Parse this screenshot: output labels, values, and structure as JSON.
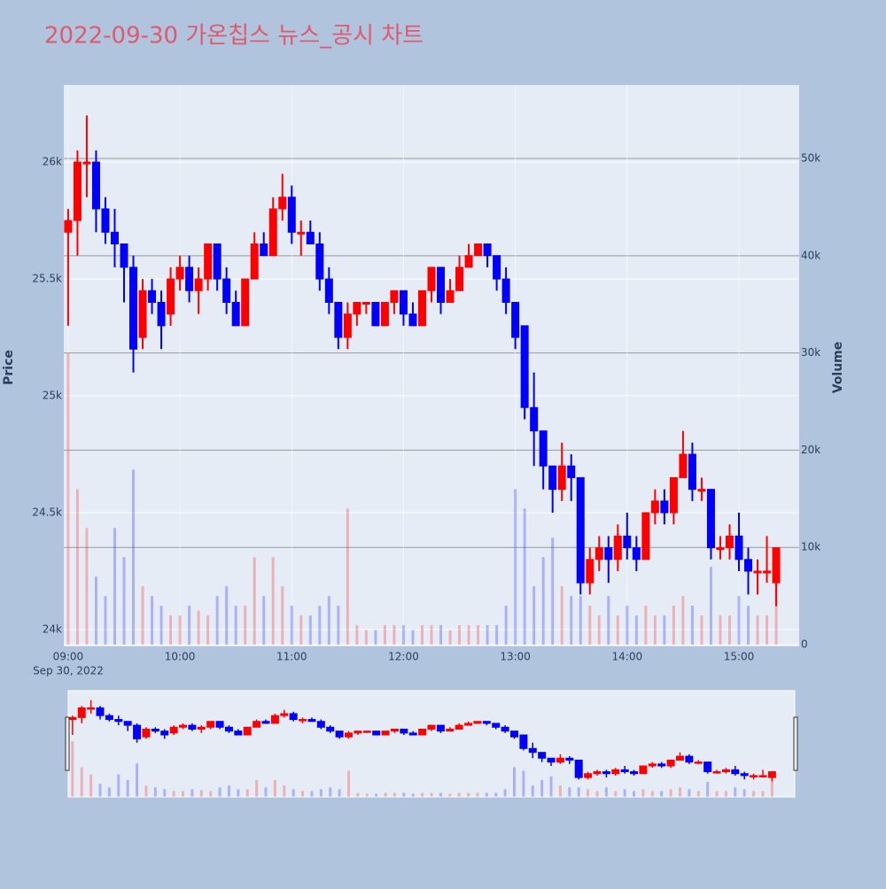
{
  "chart_data": {
    "type": "candlestick",
    "title": "2022-09-30 가온칩스 뉴스_공시 차트",
    "yaxis_title": "Price",
    "y2axis_title": "Volume",
    "x_date_label": "Sep 30, 2022",
    "increasing_color": "#ff0000",
    "decreasing_color": "#0000ff",
    "grid": true,
    "range_slider": true,
    "xlim": [
      "2022-09-30 08:57:40",
      "2022-09-30 15:32:20"
    ],
    "xticks": [
      {
        "value": "2022-09-30 09:00",
        "label": "09:00"
      },
      {
        "value": "2022-09-30 10:00",
        "label": "10:00"
      },
      {
        "value": "2022-09-30 11:00",
        "label": "11:00"
      },
      {
        "value": "2022-09-30 12:00",
        "label": "12:00"
      },
      {
        "value": "2022-09-30 13:00",
        "label": "13:00"
      },
      {
        "value": "2022-09-30 14:00",
        "label": "14:00"
      },
      {
        "value": "2022-09-30 15:00",
        "label": "15:00"
      }
    ],
    "ylim": [
      23928,
      26330
    ],
    "yticks": [
      {
        "value": 24000,
        "label": "24k"
      },
      {
        "value": 24500,
        "label": "24.5k"
      },
      {
        "value": 25000,
        "label": "25k"
      },
      {
        "value": 25500,
        "label": "25.5k"
      },
      {
        "value": 26000,
        "label": "26k"
      }
    ],
    "y2lim": [
      -180,
      57560
    ],
    "y2ticks": [
      0,
      {
        "value": 10000,
        "label": "10k"
      },
      {
        "value": 20000,
        "label": "20k"
      },
      {
        "value": 30000,
        "label": "30k"
      },
      {
        "value": 40000,
        "label": "40k"
      },
      {
        "value": 50000,
        "label": "50k"
      }
    ],
    "x": [
      "2022-09-30 09:00",
      "2022-09-30 09:05",
      "2022-09-30 09:10",
      "2022-09-30 09:15",
      "2022-09-30 09:20",
      "2022-09-30 09:25",
      "2022-09-30 09:30",
      "2022-09-30 09:35",
      "2022-09-30 09:40",
      "2022-09-30 09:45",
      "2022-09-30 09:50",
      "2022-09-30 09:55",
      "2022-09-30 10:00",
      "2022-09-30 10:05",
      "2022-09-30 10:10",
      "2022-09-30 10:15",
      "2022-09-30 10:20",
      "2022-09-30 10:25",
      "2022-09-30 10:30",
      "2022-09-30 10:35",
      "2022-09-30 10:40",
      "2022-09-30 10:45",
      "2022-09-30 10:50",
      "2022-09-30 10:55",
      "2022-09-30 11:00",
      "2022-09-30 11:05",
      "2022-09-30 11:10",
      "2022-09-30 11:15",
      "2022-09-30 11:20",
      "2022-09-30 11:25",
      "2022-09-30 11:30",
      "2022-09-30 11:35",
      "2022-09-30 11:40",
      "2022-09-30 11:45",
      "2022-09-30 11:50",
      "2022-09-30 11:55",
      "2022-09-30 12:00",
      "2022-09-30 12:05",
      "2022-09-30 12:10",
      "2022-09-30 12:15",
      "2022-09-30 12:20",
      "2022-09-30 12:25",
      "2022-09-30 12:30",
      "2022-09-30 12:35",
      "2022-09-30 12:40",
      "2022-09-30 12:45",
      "2022-09-30 12:50",
      "2022-09-30 12:55",
      "2022-09-30 13:00",
      "2022-09-30 13:05",
      "2022-09-30 13:10",
      "2022-09-30 13:15",
      "2022-09-30 13:20",
      "2022-09-30 13:25",
      "2022-09-30 13:30",
      "2022-09-30 13:35",
      "2022-09-30 13:40",
      "2022-09-30 13:45",
      "2022-09-30 13:50",
      "2022-09-30 13:55",
      "2022-09-30 14:00",
      "2022-09-30 14:05",
      "2022-09-30 14:10",
      "2022-09-30 14:15",
      "2022-09-30 14:20",
      "2022-09-30 14:25",
      "2022-09-30 14:30",
      "2022-09-30 14:35",
      "2022-09-30 14:40",
      "2022-09-30 14:45",
      "2022-09-30 14:50",
      "2022-09-30 14:55",
      "2022-09-30 15:00",
      "2022-09-30 15:05",
      "2022-09-30 15:10",
      "2022-09-30 15:15",
      "2022-09-30 15:20"
    ],
    "open": [
      25700,
      25750,
      26000,
      26000,
      25800,
      25700,
      25650,
      25550,
      25250,
      25450,
      25400,
      25350,
      25500,
      25550,
      25450,
      25500,
      25650,
      25500,
      25400,
      25300,
      25500,
      25650,
      25600,
      25800,
      25850,
      25700,
      25700,
      25650,
      25500,
      25400,
      25250,
      25350,
      25400,
      25400,
      25300,
      25400,
      25450,
      25350,
      25300,
      25450,
      25550,
      25400,
      25450,
      25550,
      25600,
      25650,
      25600,
      25500,
      25400,
      25300,
      24950,
      24850,
      24700,
      24600,
      24700,
      24650,
      24200,
      24300,
      24350,
      24300,
      24400,
      24350,
      24300,
      24500,
      24550,
      24500,
      24650,
      24750,
      24600,
      24600,
      24350,
      24350,
      24400,
      24300,
      24250,
      24250,
      24200
    ],
    "high": [
      25800,
      26050,
      26200,
      26050,
      25850,
      25800,
      25650,
      25600,
      25500,
      25500,
      25450,
      25550,
      25600,
      25600,
      25550,
      25650,
      25650,
      25550,
      25450,
      25500,
      25700,
      25700,
      25850,
      25950,
      25900,
      25750,
      25750,
      25700,
      25550,
      25400,
      25400,
      25400,
      25400,
      25400,
      25400,
      25450,
      25450,
      25400,
      25450,
      25550,
      25550,
      25500,
      25600,
      25650,
      25650,
      25650,
      25600,
      25550,
      25400,
      25300,
      25100,
      24850,
      24700,
      24800,
      24750,
      24650,
      24350,
      24400,
      24400,
      24450,
      24500,
      24400,
      24500,
      24600,
      24600,
      24650,
      24850,
      24800,
      24650,
      24600,
      24400,
      24450,
      24500,
      24350,
      24300,
      24400,
      24350
    ],
    "low": [
      25300,
      25600,
      25850,
      25700,
      25650,
      25550,
      25400,
      25100,
      25200,
      25350,
      25200,
      25300,
      25450,
      25400,
      25350,
      25450,
      25450,
      25350,
      25300,
      25300,
      25500,
      25600,
      25600,
      25750,
      25650,
      25600,
      25650,
      25450,
      25350,
      25200,
      25200,
      25300,
      25350,
      25300,
      25300,
      25350,
      25300,
      25300,
      25300,
      25400,
      25350,
      25400,
      25450,
      25550,
      25600,
      25550,
      25450,
      25350,
      25200,
      24900,
      24700,
      24600,
      24500,
      24550,
      24550,
      24150,
      24150,
      24250,
      24200,
      24250,
      24300,
      24250,
      24300,
      24450,
      24450,
      24450,
      24650,
      24550,
      24550,
      24300,
      24300,
      24300,
      24250,
      24150,
      24150,
      24200,
      24100
    ],
    "close": [
      25750,
      26000,
      26000,
      25800,
      25700,
      25650,
      25550,
      25200,
      25450,
      25400,
      25300,
      25500,
      25550,
      25450,
      25500,
      25650,
      25500,
      25400,
      25300,
      25500,
      25650,
      25600,
      25800,
      25850,
      25700,
      25700,
      25650,
      25500,
      25400,
      25250,
      25350,
      25400,
      25400,
      25300,
      25400,
      25450,
      25350,
      25300,
      25450,
      25550,
      25400,
      25450,
      25550,
      25600,
      25650,
      25600,
      25500,
      25400,
      25250,
      24950,
      24850,
      24700,
      24600,
      24700,
      24650,
      24200,
      24300,
      24350,
      24300,
      24400,
      24350,
      24300,
      24500,
      24550,
      24500,
      24650,
      24750,
      24600,
      24600,
      24350,
      24350,
      24400,
      24300,
      24250,
      24250,
      24250,
      24350
    ],
    "volume": [
      30000,
      16000,
      12000,
      7000,
      5000,
      12000,
      9000,
      18000,
      6000,
      5000,
      4000,
      3000,
      3000,
      4000,
      3500,
      3000,
      5000,
      6000,
      4000,
      4000,
      9000,
      5000,
      9000,
      6000,
      4000,
      3000,
      3000,
      4000,
      5000,
      4000,
      14000,
      2000,
      1500,
      1500,
      2000,
      2000,
      2000,
      1500,
      2000,
      2000,
      2000,
      1500,
      2000,
      2000,
      2000,
      2000,
      2000,
      4000,
      16000,
      14000,
      6000,
      9000,
      11000,
      6000,
      5000,
      5000,
      4000,
      3000,
      5000,
      3000,
      4000,
      3000,
      4000,
      3000,
      3000,
      4000,
      5000,
      4000,
      3000,
      8000,
      3000,
      3000,
      5000,
      4000,
      3000,
      3000,
      9000
    ]
  }
}
